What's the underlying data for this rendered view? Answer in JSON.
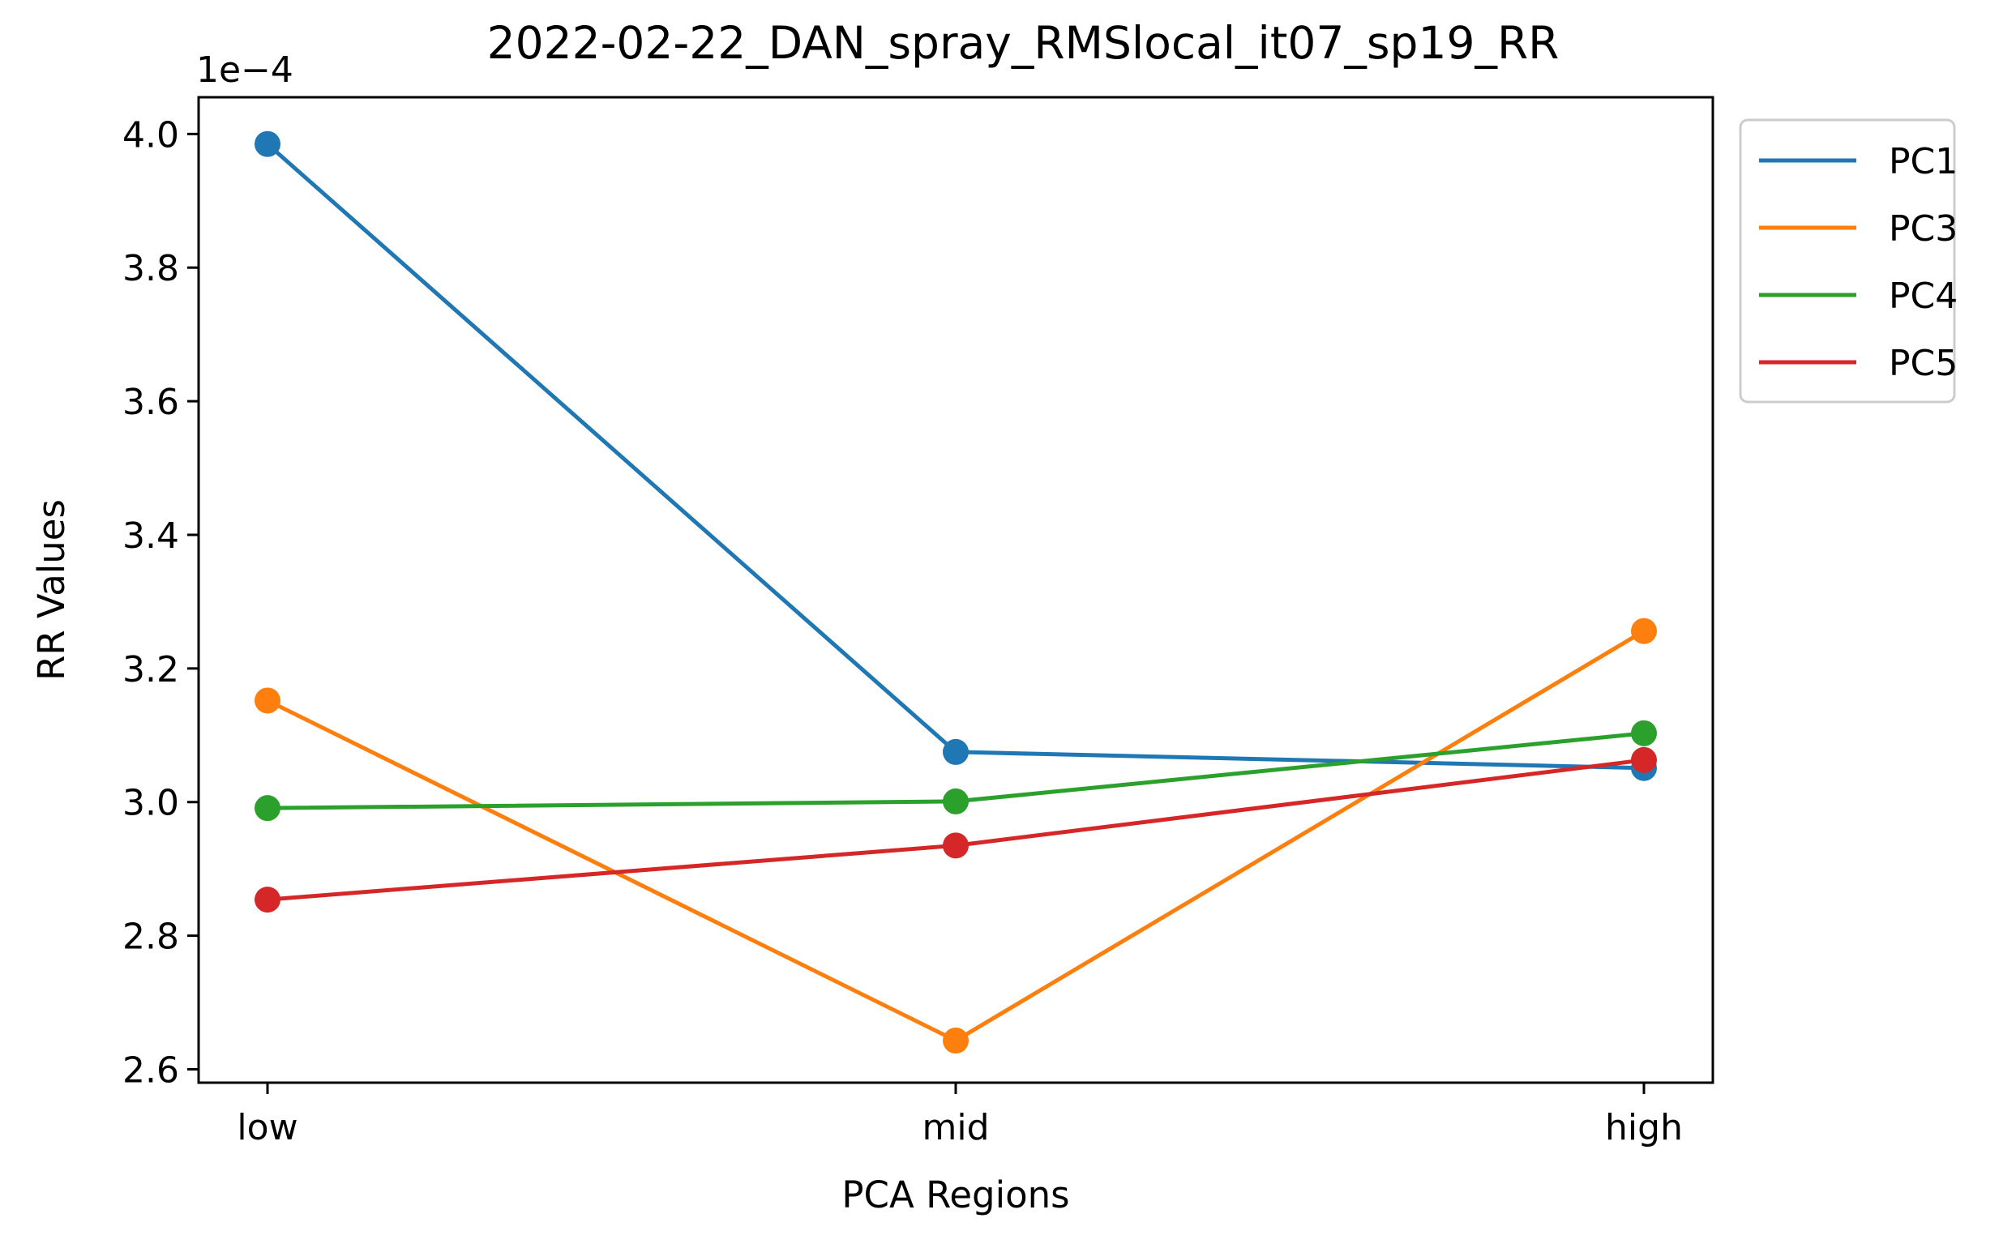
{
  "chart_data": {
    "type": "line",
    "title": "2022-02-22_DAN_spray_RMSlocal_it07_sp19_RR",
    "xlabel": "PCA Regions",
    "ylabel": "RR Values",
    "y_offset_label": "1e−4",
    "categories": [
      "low",
      "mid",
      "high"
    ],
    "ylim": [
      2.58,
      4.055
    ],
    "yticks": [
      2.6,
      2.8,
      3.0,
      3.2,
      3.4,
      3.6,
      3.8,
      4.0
    ],
    "ytick_labels": [
      "2.6",
      "2.8",
      "3.0",
      "3.2",
      "3.4",
      "3.6",
      "3.8",
      "4.0"
    ],
    "legend_position": "upper right, outside plot",
    "grid": false,
    "series": [
      {
        "name": "PC1",
        "color": "#1f77b4",
        "values": [
          3.985,
          3.075,
          3.051
        ]
      },
      {
        "name": "PC3",
        "color": "#ff7f0e",
        "values": [
          3.152,
          2.643,
          3.256
        ]
      },
      {
        "name": "PC4",
        "color": "#2ca02c",
        "values": [
          2.991,
          3.001,
          3.103
        ]
      },
      {
        "name": "PC5",
        "color": "#d62728",
        "values": [
          2.854,
          2.935,
          3.063
        ]
      }
    ]
  }
}
